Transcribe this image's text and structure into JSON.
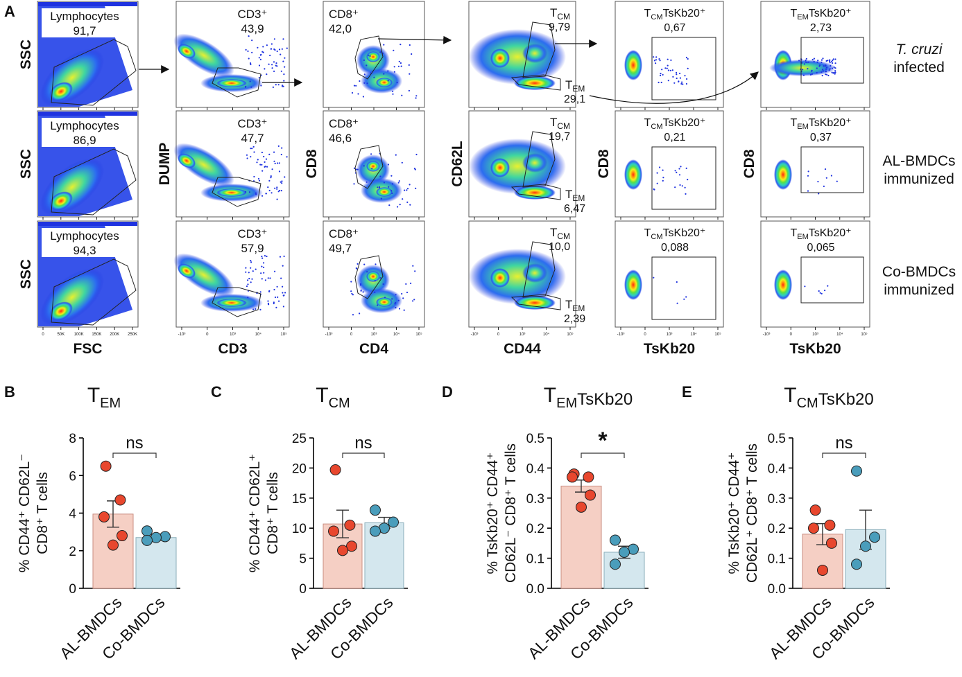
{
  "panel_letters": [
    "A",
    "B",
    "C",
    "D",
    "E"
  ],
  "flow": {
    "row_labels": [
      {
        "line1": "T. cruzi",
        "line2": "infected",
        "italic_first": true
      },
      {
        "line1": "AL-BMDCs",
        "line2": "immunized",
        "italic_first": false
      },
      {
        "line1": "Co-BMDCs",
        "line2": "immunized",
        "italic_first": false
      }
    ],
    "columns": [
      {
        "x_label": "FSC",
        "y_label": "SSC",
        "y_label_rows": [
          0,
          1,
          2
        ],
        "ticks": [
          "0",
          "50K",
          "100K",
          "150K",
          "200K",
          "250K"
        ]
      },
      {
        "x_label": "CD3",
        "y_label": "DUMP",
        "y_label_rows": [
          1
        ],
        "ticks": [
          "-10³",
          "0",
          "10³",
          "10⁴",
          "10⁵"
        ]
      },
      {
        "x_label": "CD4",
        "y_label": "CD8",
        "y_label_rows": [
          1
        ],
        "ticks": [
          "-10³",
          "0",
          "10³",
          "10⁴",
          "10⁵"
        ]
      },
      {
        "x_label": "CD44",
        "y_label": "CD62L",
        "y_label_rows": [
          1
        ],
        "ticks": [
          "-10³",
          "0",
          "10³",
          "10⁴",
          "10⁵"
        ]
      },
      {
        "x_label": "TsKb20",
        "y_label": "CD8",
        "y_label_rows": [
          1
        ],
        "ticks": [
          "-10³",
          "0",
          "10³",
          "10⁴",
          "10⁵"
        ]
      },
      {
        "x_label": "TsKb20",
        "y_label": "CD8",
        "y_label_rows": [
          1
        ],
        "ticks": [
          "-10³",
          "0",
          "10³",
          "10⁴",
          "10⁵"
        ]
      }
    ],
    "gates": [
      [
        {
          "name": "Lymphocytes",
          "value": "91,7"
        },
        {
          "name": "CD3⁺",
          "value": "43,9"
        },
        {
          "name": "CD8⁺",
          "value": "42,0"
        },
        {
          "tcm_value": "9,79",
          "tem_value": "29,1"
        },
        {
          "value": "0,67"
        },
        {
          "value": "2,73"
        }
      ],
      [
        {
          "name": "Lymphocytes",
          "value": "86,9"
        },
        {
          "name": "CD3⁺",
          "value": "47,7"
        },
        {
          "name": "CD8⁺",
          "value": "46,6"
        },
        {
          "tcm_value": "19,7",
          "tem_value": "6,47"
        },
        {
          "value": "0,21"
        },
        {
          "value": "0,37"
        }
      ],
      [
        {
          "name": "Lymphocytes",
          "value": "94,3"
        },
        {
          "name": "CD3⁺",
          "value": "57,9"
        },
        {
          "name": "CD8⁺",
          "value": "49,7"
        },
        {
          "tcm_value": "10,0",
          "tem_value": "2,39"
        },
        {
          "value": "0,088"
        },
        {
          "value": "0,065"
        }
      ]
    ],
    "subset_labels": {
      "T": "T",
      "CM": "CM",
      "EM": "EM",
      "TsKb20_plus": "TsKb20⁺"
    }
  },
  "colors": {
    "al_bar": "#f5cfc4",
    "al_bar_edge": "#c98c80",
    "al_dot": "#e8472e",
    "co_bar": "#d4e7ee",
    "co_bar_edge": "#89aeba",
    "co_dot": "#4a9dbb",
    "density_low": "#1f33e0",
    "density_mid": "#33d1b4",
    "density_high": "#ff2a10"
  },
  "chart_data": [
    {
      "type": "bar",
      "panel": "B",
      "title_main": "T",
      "title_sub": "EM",
      "title_tail": "",
      "ylabel_line1": "% CD44⁺ CD62L⁻",
      "ylabel_line2": "CD8⁺ T cells",
      "categories": [
        "AL-BMDCs",
        "Co-BMDCs"
      ],
      "means": [
        3.95,
        2.7
      ],
      "sem": [
        0.7,
        0.15
      ],
      "points": [
        [
          6.5,
          4.7,
          3.8,
          2.8,
          2.3
        ],
        [
          3.05,
          2.75,
          2.7,
          2.55
        ]
      ],
      "ylim": [
        0,
        8
      ],
      "yticks": [
        "0",
        "2",
        "4",
        "6",
        "8"
      ],
      "significance": "ns"
    },
    {
      "type": "bar",
      "panel": "C",
      "title_main": "T",
      "title_sub": "CM",
      "title_tail": "",
      "ylabel_line1": "% CD44⁺ CD62L⁺",
      "ylabel_line2": "CD8⁺ T cells",
      "categories": [
        "AL-BMDCs",
        "Co-BMDCs"
      ],
      "means": [
        10.7,
        10.9
      ],
      "sem": [
        2.3,
        0.9
      ],
      "points": [
        [
          19.7,
          10.5,
          9.5,
          7.0,
          6.3
        ],
        [
          13.0,
          11.0,
          10.0,
          9.5
        ]
      ],
      "ylim": [
        0,
        25
      ],
      "yticks": [
        "0",
        "5",
        "10",
        "15",
        "20",
        "25"
      ],
      "significance": "ns"
    },
    {
      "type": "bar",
      "panel": "D",
      "title_main": "T",
      "title_sub": "EM",
      "title_tail": "TsKb20",
      "ylabel_line1": "% TsKb20⁺ CD44⁺",
      "ylabel_line2": "CD62L⁻ CD8⁺ T cells",
      "categories": [
        "AL-BMDCs",
        "Co-BMDCs"
      ],
      "means": [
        0.34,
        0.12
      ],
      "sem": [
        0.02,
        0.02
      ],
      "points": [
        [
          0.38,
          0.37,
          0.37,
          0.31,
          0.27
        ],
        [
          0.16,
          0.13,
          0.12,
          0.08
        ]
      ],
      "ylim": [
        0,
        0.5
      ],
      "yticks": [
        "0.0",
        "0.1",
        "0.2",
        "0.3",
        "0.4",
        "0.5"
      ],
      "significance": "*"
    },
    {
      "type": "bar",
      "panel": "E",
      "title_main": "T",
      "title_sub": "CM",
      "title_tail": "TsKb20",
      "ylabel_line1": "% TsKb20⁺ CD44⁺",
      "ylabel_line2": "CD62L⁺ CD8⁺ T cells",
      "categories": [
        "AL-BMDCs",
        "Co-BMDCs"
      ],
      "means": [
        0.18,
        0.195
      ],
      "sem": [
        0.035,
        0.065
      ],
      "points": [
        [
          0.26,
          0.21,
          0.2,
          0.15,
          0.06
        ],
        [
          0.39,
          0.17,
          0.14,
          0.08
        ]
      ],
      "ylim": [
        0,
        0.5
      ],
      "yticks": [
        "0.0",
        "0.1",
        "0.2",
        "0.3",
        "0.4",
        "0.5"
      ],
      "significance": "ns"
    }
  ]
}
